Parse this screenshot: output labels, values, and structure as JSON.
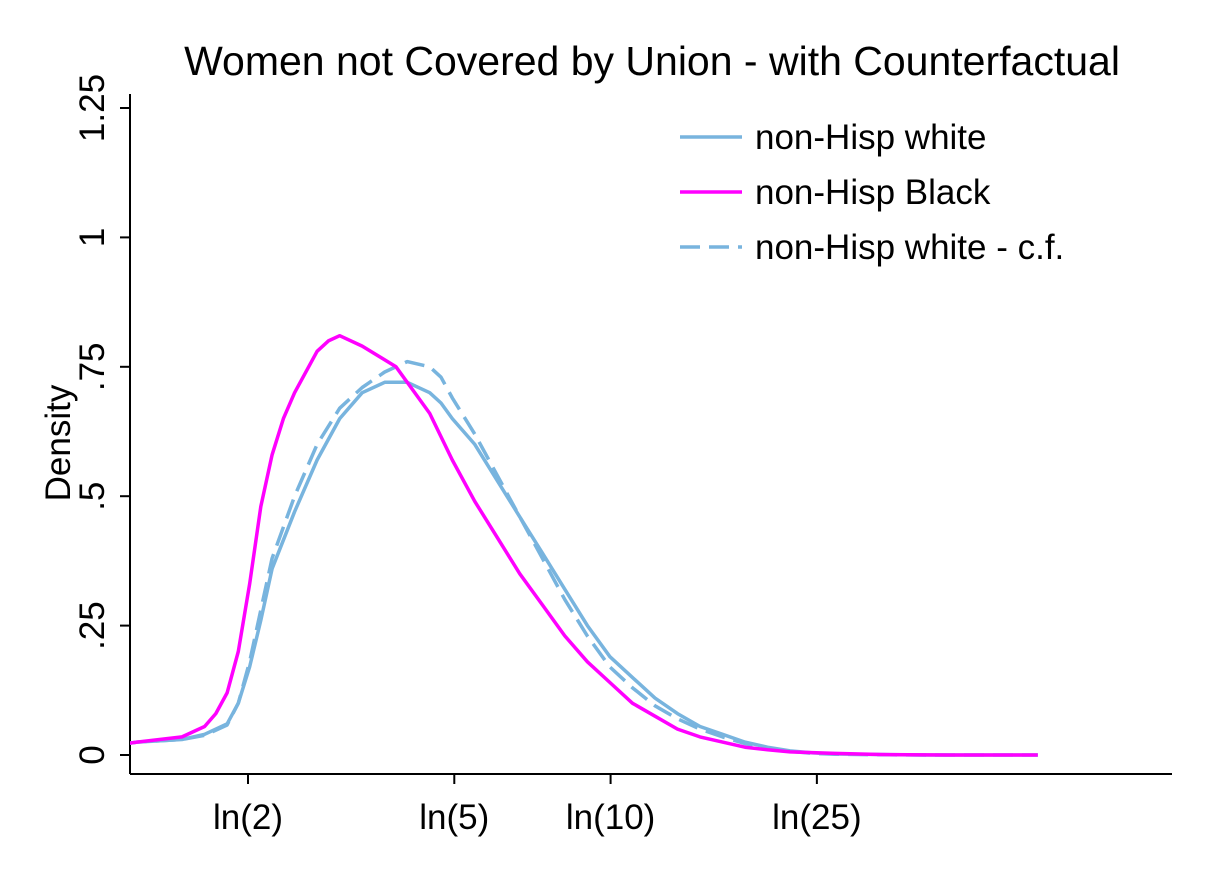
{
  "chart_data": {
    "type": "line",
    "title": "Women not Covered by Union - with Counterfactual",
    "xlabel": "",
    "ylabel": "Density",
    "x_scale": "log (natural log of hourly wage)",
    "xlim": [
      0.2,
      4.0
    ],
    "ylim": [
      0,
      1.25
    ],
    "x_ticks": [
      {
        "value": 0.693,
        "label": "ln(2)"
      },
      {
        "value": 1.609,
        "label": "ln(5)"
      },
      {
        "value": 2.303,
        "label": "ln(10)"
      },
      {
        "value": 3.219,
        "label": "ln(25)"
      }
    ],
    "y_ticks": [
      {
        "value": 0,
        "label": "0"
      },
      {
        "value": 0.25,
        "label": ".25"
      },
      {
        "value": 0.5,
        "label": ".5"
      },
      {
        "value": 0.75,
        "label": ".75"
      },
      {
        "value": 1,
        "label": "1"
      },
      {
        "value": 1.25,
        "label": "1.25"
      }
    ],
    "grid": false,
    "legend_position": "top-right",
    "series": [
      {
        "name": "non-Hisp white",
        "color": "#78b4de",
        "style": "solid",
        "x": [
          -0.1,
          0.2,
          0.4,
          0.5,
          0.6,
          0.65,
          0.7,
          0.75,
          0.8,
          0.9,
          1.0,
          1.1,
          1.2,
          1.3,
          1.4,
          1.5,
          1.55,
          1.6,
          1.7,
          1.8,
          1.9,
          2.0,
          2.1,
          2.2,
          2.3,
          2.4,
          2.5,
          2.6,
          2.7,
          2.8,
          2.9,
          3.0,
          3.1,
          3.2,
          3.3,
          3.5,
          3.7,
          3.9,
          4.2
        ],
        "y": [
          0.005,
          0.025,
          0.03,
          0.04,
          0.06,
          0.1,
          0.17,
          0.26,
          0.36,
          0.47,
          0.57,
          0.65,
          0.7,
          0.72,
          0.72,
          0.7,
          0.68,
          0.65,
          0.6,
          0.53,
          0.46,
          0.39,
          0.32,
          0.25,
          0.19,
          0.15,
          0.11,
          0.08,
          0.055,
          0.04,
          0.025,
          0.015,
          0.008,
          0.004,
          0.002,
          0.001,
          0,
          0,
          0
        ]
      },
      {
        "name": "non-Hisp Black",
        "color": "#ff00ff",
        "style": "solid",
        "x": [
          -0.1,
          0.2,
          0.4,
          0.5,
          0.55,
          0.6,
          0.65,
          0.7,
          0.75,
          0.8,
          0.85,
          0.9,
          1.0,
          1.05,
          1.1,
          1.2,
          1.35,
          1.45,
          1.5,
          1.6,
          1.7,
          1.8,
          1.9,
          2.0,
          2.1,
          2.2,
          2.3,
          2.4,
          2.5,
          2.6,
          2.7,
          2.8,
          2.9,
          3.0,
          3.1,
          3.3,
          3.5,
          3.8,
          4.2
        ],
        "y": [
          0.005,
          0.025,
          0.035,
          0.055,
          0.08,
          0.12,
          0.2,
          0.33,
          0.48,
          0.58,
          0.65,
          0.7,
          0.78,
          0.8,
          0.81,
          0.79,
          0.75,
          0.69,
          0.66,
          0.57,
          0.49,
          0.42,
          0.35,
          0.29,
          0.23,
          0.18,
          0.14,
          0.1,
          0.075,
          0.05,
          0.035,
          0.025,
          0.015,
          0.01,
          0.006,
          0.003,
          0.001,
          0,
          0
        ]
      },
      {
        "name": "non-Hisp white - c.f.",
        "color": "#78b4de",
        "style": "dashed",
        "x": [
          -0.1,
          0.2,
          0.4,
          0.5,
          0.6,
          0.65,
          0.7,
          0.75,
          0.8,
          0.9,
          1.0,
          1.1,
          1.2,
          1.3,
          1.4,
          1.5,
          1.55,
          1.6,
          1.7,
          1.8,
          1.9,
          2.0,
          2.1,
          2.2,
          2.3,
          2.4,
          2.5,
          2.6,
          2.7,
          2.8,
          2.9,
          3.0,
          3.1,
          3.2,
          3.3,
          3.5,
          3.7,
          3.9,
          4.2
        ],
        "y": [
          0.005,
          0.025,
          0.03,
          0.038,
          0.058,
          0.1,
          0.18,
          0.28,
          0.38,
          0.5,
          0.6,
          0.67,
          0.71,
          0.74,
          0.76,
          0.75,
          0.73,
          0.69,
          0.62,
          0.54,
          0.46,
          0.38,
          0.3,
          0.23,
          0.17,
          0.13,
          0.095,
          0.07,
          0.05,
          0.035,
          0.022,
          0.013,
          0.007,
          0.003,
          0.0015,
          0.0005,
          0,
          0,
          0
        ]
      }
    ]
  }
}
